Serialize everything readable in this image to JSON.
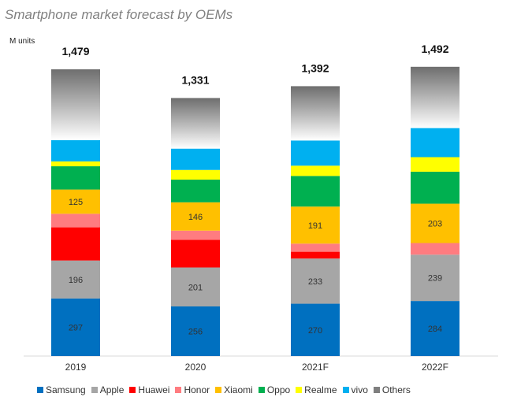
{
  "chart_data": {
    "type": "bar",
    "stacked": true,
    "title": "Smartphone market forecast by OEMs",
    "ylabel": "M units",
    "xlabel": "",
    "categories": [
      "2019",
      "2020",
      "2021F",
      "2022F"
    ],
    "totals": [
      1479,
      1331,
      1392,
      1492
    ],
    "series": [
      {
        "name": "Samsung",
        "color": "#0070c0",
        "values": [
          297,
          256,
          270,
          284
        ],
        "labels": [
          "297",
          "256",
          "270",
          "284"
        ]
      },
      {
        "name": "Apple",
        "color": "#a6a6a6",
        "values": [
          196,
          201,
          233,
          239
        ],
        "labels": [
          "196",
          "201",
          "233",
          "239"
        ]
      },
      {
        "name": "Huawei",
        "color": "#ff0000",
        "values": [
          171,
          143,
          35,
          0
        ],
        "labels": [
          "",
          "",
          "",
          ""
        ]
      },
      {
        "name": "Honor",
        "color": "#ff7c80",
        "values": [
          70,
          47,
          42,
          60
        ],
        "labels": [
          "",
          "",
          "",
          ""
        ]
      },
      {
        "name": "Xiaomi",
        "color": "#ffc000",
        "values": [
          125,
          146,
          191,
          203
        ],
        "labels": [
          "125",
          "146",
          "191",
          "203"
        ]
      },
      {
        "name": "Oppo",
        "color": "#00b050",
        "values": [
          120,
          117,
          158,
          165
        ],
        "labels": [
          "",
          "",
          "",
          ""
        ]
      },
      {
        "name": "Realme",
        "color": "#ffff00",
        "values": [
          25,
          50,
          53,
          75
        ],
        "labels": [
          "",
          "",
          "",
          ""
        ]
      },
      {
        "name": "vivo",
        "color": "#00b0f0",
        "values": [
          110,
          110,
          130,
          150
        ],
        "labels": [
          "",
          "",
          "",
          ""
        ]
      },
      {
        "name": "Others",
        "color": "#7f7f7f",
        "values": [
          365,
          261,
          280,
          316
        ],
        "labels": [
          "",
          "",
          "",
          ""
        ],
        "gradient": true
      }
    ],
    "ylim": [
      0,
      1550
    ],
    "grid": false,
    "legend_position": "bottom"
  }
}
